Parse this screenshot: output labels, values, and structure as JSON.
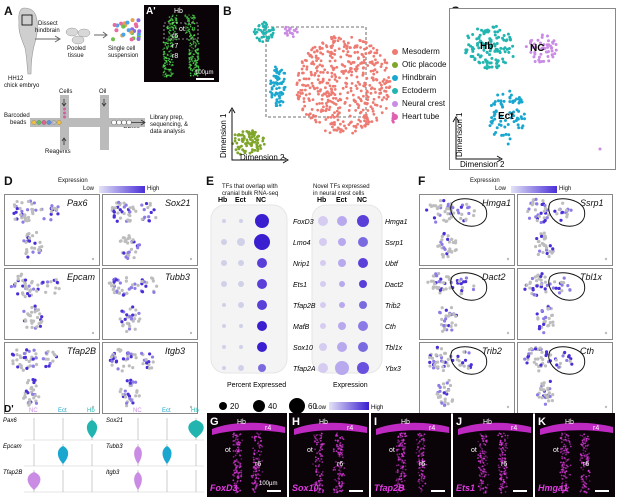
{
  "panel_letters": {
    "A": "A",
    "A2": "A'",
    "B": "B",
    "C": "C",
    "D": "D",
    "D2": "D'",
    "E": "E",
    "F": "F",
    "G": "G",
    "H": "H",
    "I": "I",
    "J": "J",
    "K": "K"
  },
  "panelA": {
    "embryo_label_1": "HH12",
    "embryo_label_2": "chick embryo",
    "step1_1": "Dissect",
    "step1_2": "hindbrain",
    "step2_1": "Pooled",
    "step2_2": "tissue",
    "step3_1": "Single cell",
    "step3_2": "suspension",
    "cells": "Cells",
    "oil": "Oil",
    "beads_1": "Barcoded",
    "beads_2": "beads",
    "reagents": "Reagents",
    "gems": "GEMs",
    "lib_1": "Library prep,",
    "lib_2": "sequencing, &",
    "lib_3": "data analysis"
  },
  "panelA2": {
    "title": "Hb",
    "ot": "ot",
    "r6": "r6",
    "r7": "r7",
    "r8": "r8",
    "scale": "100µm"
  },
  "panelB": {
    "axis_y": "Dimension 1",
    "axis_x": "Dimension 2",
    "legend": [
      {
        "label": "Mesoderm",
        "color": "#ee7b72"
      },
      {
        "label": "Otic placode",
        "color": "#7fa62a"
      },
      {
        "label": "Hindbrain",
        "color": "#1aa7cf"
      },
      {
        "label": "Ectoderm",
        "color": "#22b5b0"
      },
      {
        "label": "Neural crest",
        "color": "#c98be3"
      },
      {
        "label": "Heart tube",
        "color": "#e060b0"
      }
    ]
  },
  "panelC": {
    "hb": "Hb",
    "nc": "NC",
    "ect": "Ect",
    "axis_y": "Dimension 1",
    "axis_x": "Dimension 2"
  },
  "panelD": {
    "expression": "Expression",
    "low": "Low",
    "high": "High",
    "genes": [
      "Pax6",
      "Sox21",
      "Epcam",
      "Tubb3",
      "Tfap2B",
      "Itgb3"
    ]
  },
  "panelD2": {
    "headers": [
      "NC",
      "Ect",
      "Hb",
      "NC",
      "Ect",
      "Hb"
    ],
    "genes_left": [
      "Pax6",
      "Epcam",
      "Tfap2B"
    ],
    "genes_right": [
      "Sox21",
      "Tubb3",
      "Itgb3"
    ]
  },
  "panelE": {
    "left_title_1": "TFs that overlap with",
    "left_title_2": "cranial bulk RNA-seq",
    "right_title_1": "Novel TFs expressed",
    "right_title_2": "in neural crest cells",
    "cols": [
      "Hb",
      "Ect",
      "NC"
    ],
    "left_genes": [
      "FoxD3",
      "Lmo4",
      "Nrip1",
      "Ets1",
      "Tfap2B",
      "MafB",
      "Sox10",
      "Tfap2A"
    ],
    "right_genes": [
      "Hmga1",
      "Ssrp1",
      "Ubtf",
      "Dact2",
      "Trib2",
      "Cth",
      "Tbl1x",
      "Ybx3"
    ],
    "pct_title": "Percent Expressed",
    "pct_values": [
      "20",
      "40",
      "60"
    ],
    "expr_title": "Expression",
    "low": "Low",
    "high": "High"
  },
  "panelF": {
    "expression": "Expression",
    "low": "Low",
    "high": "High",
    "genes": [
      "Hmga1",
      "Ssrp1",
      "Dact2",
      "Tbl1x",
      "Trib2",
      "Cth"
    ]
  },
  "fluor": [
    {
      "gene": "FoxD3",
      "hb": "Hb",
      "r4": "r4",
      "ot": "ot",
      "r6": "r6",
      "scale": "100µm"
    },
    {
      "gene": "Sox10",
      "hb": "Hb",
      "r4": "r4",
      "ot": "ot",
      "r6": "r6"
    },
    {
      "gene": "Tfap2B",
      "hb": "Hb",
      "r4": "r4",
      "ot": "ot",
      "r6": "r6"
    },
    {
      "gene": "Ets1",
      "hb": "Hb",
      "r4": "r4",
      "ot": "ot",
      "r6": "r6"
    },
    {
      "gene": "Hmga1",
      "hb": "Hb",
      "r4": "r4",
      "ot": "ot",
      "r6": "r6"
    }
  ]
}
